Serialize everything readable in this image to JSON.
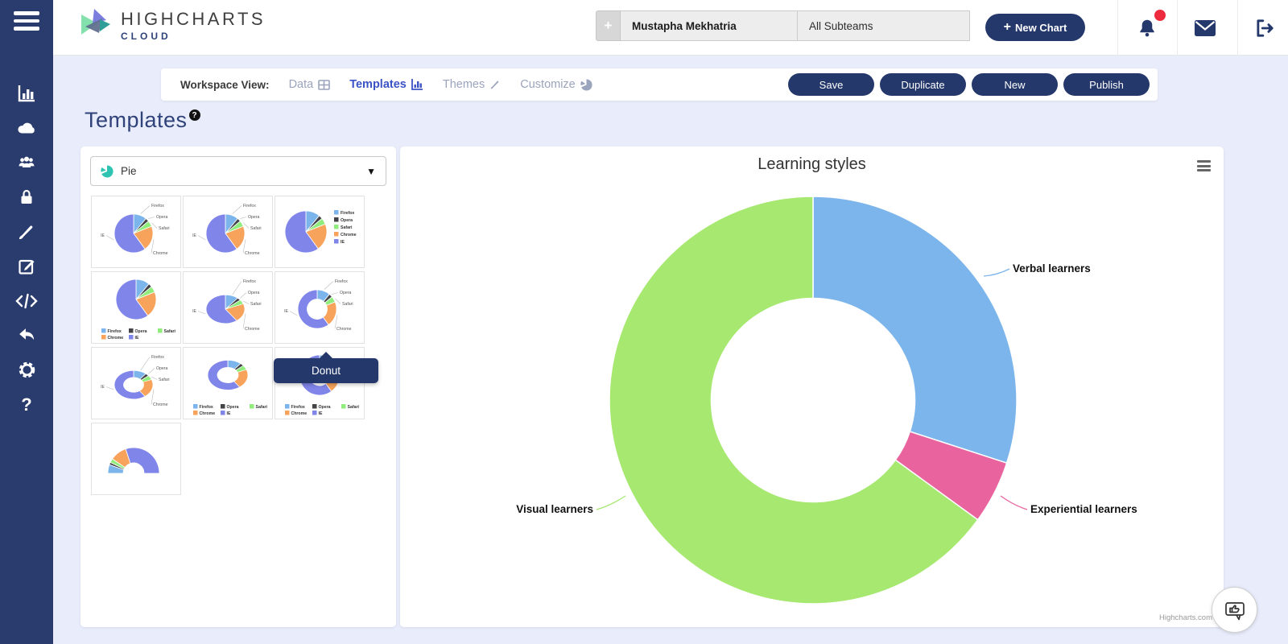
{
  "colors": {
    "sidebar_bg": "#2a3c6e",
    "button_navy": "#24386b",
    "active_tab_blue": "#3b53c4",
    "title_navy": "#2f4279",
    "notification_red": "#ee2b3e",
    "selector_pie_teal": "#2fc4b2"
  },
  "logo": {
    "main": "HIGHCHARTS",
    "sub": "CLOUD"
  },
  "sidebar": {
    "items": [
      "chart-column",
      "cloud",
      "users",
      "lock",
      "brush",
      "edit",
      "code",
      "undo",
      "gear",
      "help"
    ]
  },
  "header": {
    "plus_button": "+",
    "user_name": "Mustapha Mekhatria",
    "subteam_selector": "All Subteams",
    "new_chart": {
      "plus": "+",
      "label": "New Chart"
    }
  },
  "workspace": {
    "label": "Workspace View:",
    "tabs": [
      {
        "label": "Data",
        "icon": "table-icon",
        "active": false
      },
      {
        "label": "Templates",
        "icon": "bar-chart-icon",
        "active": true
      },
      {
        "label": "Themes",
        "icon": "brush-icon",
        "active": false
      },
      {
        "label": "Customize",
        "icon": "pie-icon",
        "active": false
      }
    ],
    "actions": [
      {
        "label": "Save"
      },
      {
        "label": "Duplicate"
      },
      {
        "label": "New"
      },
      {
        "label": "Publish"
      }
    ]
  },
  "page": {
    "title": "Templates",
    "help": "?"
  },
  "templates_panel": {
    "selector": {
      "label": "Pie",
      "icon": "pie-teal-icon"
    },
    "tooltip": "Donut",
    "mini": {
      "labels": [
        "Firefox",
        "Opera",
        "Safari",
        "Chrome",
        "IE"
      ],
      "values": [
        11,
        3,
        5,
        21,
        60
      ],
      "colors": [
        "#7cb5ec",
        "#434348",
        "#90ed7d",
        "#f7a35c",
        "#8085e9"
      ]
    },
    "thumbnails": [
      {
        "name": "pie-with-labels",
        "style": "pie labels"
      },
      {
        "name": "pie-with-labels-alt",
        "style": "pie labels"
      },
      {
        "name": "pie-legend-right",
        "style": "pie legend-right"
      },
      {
        "name": "pie-legend-bottom",
        "style": "pie legend-bottom"
      },
      {
        "name": "pie-3d-with-labels",
        "style": "pie labels 3d"
      },
      {
        "name": "donut",
        "style": "donut labels"
      },
      {
        "name": "donut-3d-with-labels",
        "style": "donut labels 3d"
      },
      {
        "name": "donut-3d-legend-bottom",
        "style": "donut legend-bottom 3d"
      },
      {
        "name": "donut-legend-bottom",
        "style": "donut legend-bottom"
      },
      {
        "name": "semi-circle-donut",
        "style": "semi"
      }
    ]
  },
  "chart_data": {
    "type": "pie",
    "subtype": "donut",
    "title": "Learning styles",
    "legend": "none",
    "inner_radius_pct": 50,
    "series": [
      {
        "name": "Verbal learners",
        "value": 30,
        "color": "#7cb5ec"
      },
      {
        "name": "Experiential learners",
        "value": 5,
        "color": "#e9639f"
      },
      {
        "name": "Visual learners",
        "value": 65,
        "color": "#a6e870"
      }
    ],
    "credits": "Highcharts.com"
  }
}
